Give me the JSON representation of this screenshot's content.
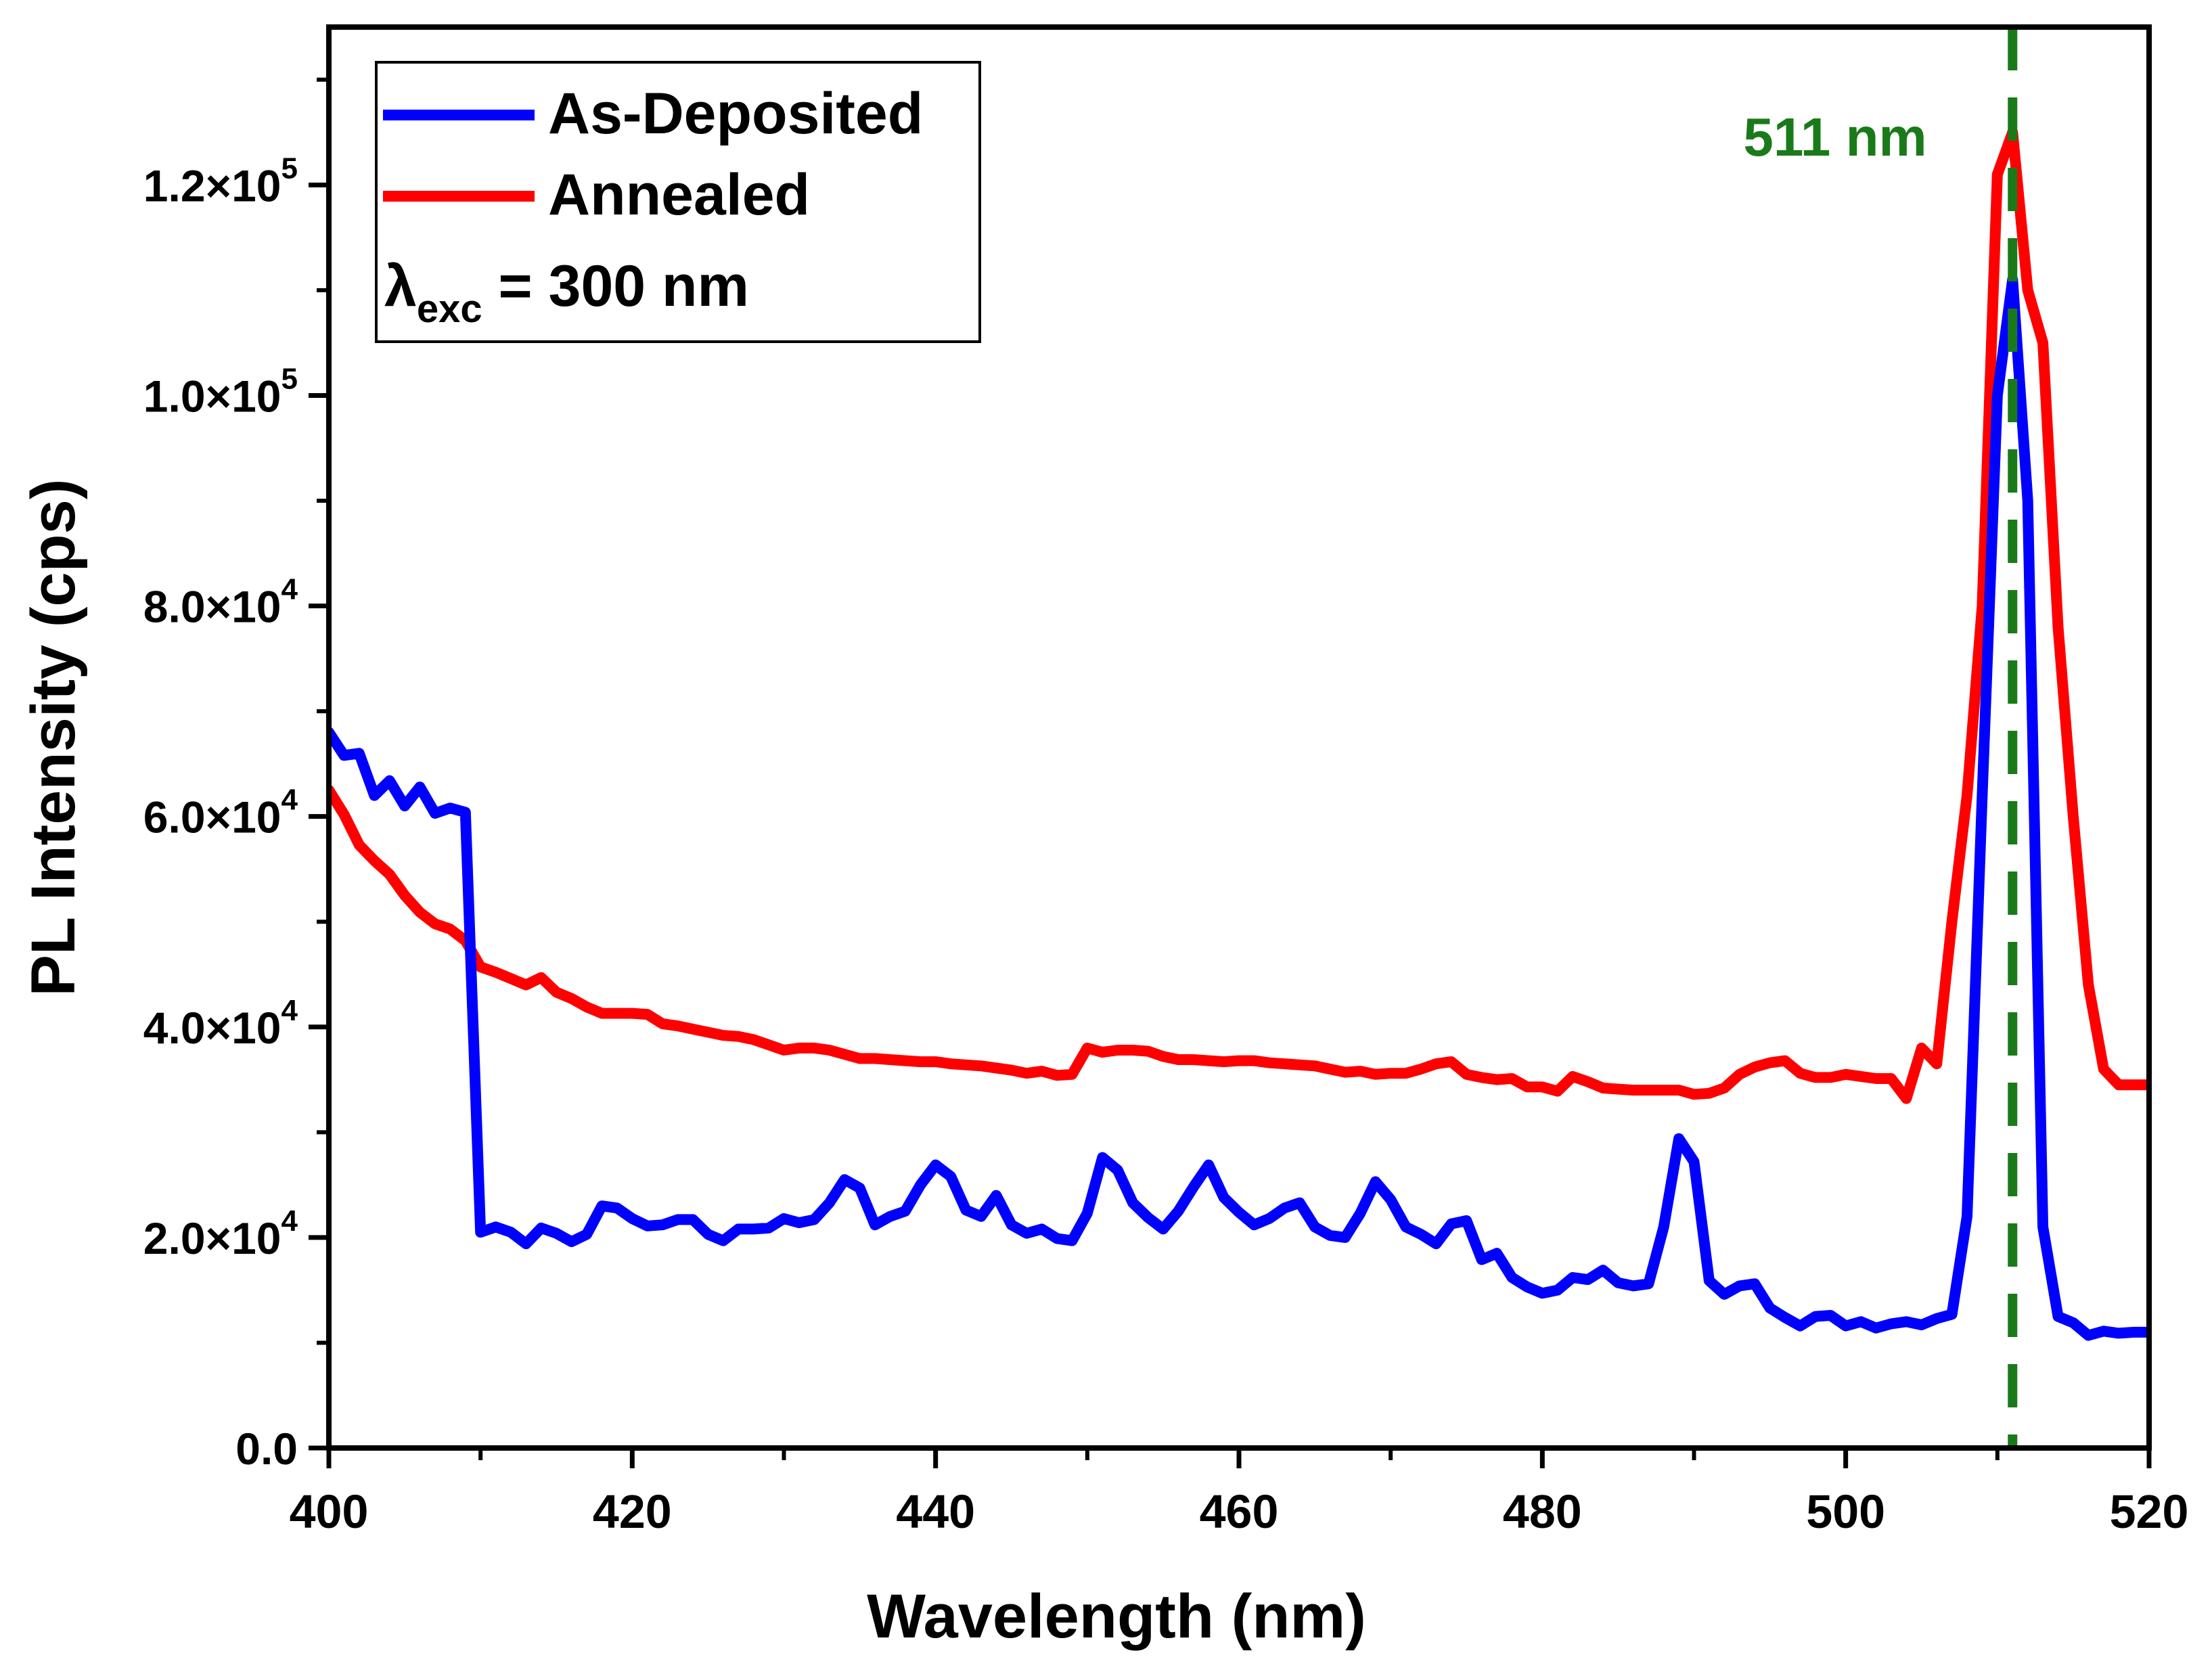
{
  "chart_data": {
    "type": "line",
    "title": "",
    "xlabel": "Wavelength (nm)",
    "ylabel": "PL Intensity (cps)",
    "xlim": [
      400,
      520
    ],
    "ylim": [
      0,
      135000
    ],
    "grid": false,
    "legend_position": "top-left",
    "x_ticks": [
      {
        "value": 400,
        "label": "400"
      },
      {
        "value": 420,
        "label": "420"
      },
      {
        "value": 440,
        "label": "440"
      },
      {
        "value": 460,
        "label": "460"
      },
      {
        "value": 480,
        "label": "480"
      },
      {
        "value": 500,
        "label": "500"
      },
      {
        "value": 520,
        "label": "520"
      }
    ],
    "y_ticks": [
      {
        "value": 0,
        "mantissa": "0.0",
        "exponent": ""
      },
      {
        "value": 20000,
        "mantissa": "2.0×10",
        "exponent": "4"
      },
      {
        "value": 40000,
        "mantissa": "4.0×10",
        "exponent": "4"
      },
      {
        "value": 60000,
        "mantissa": "6.0×10",
        "exponent": "4"
      },
      {
        "value": 80000,
        "mantissa": "8.0×10",
        "exponent": "4"
      },
      {
        "value": 100000,
        "mantissa": "1.0×10",
        "exponent": "5"
      },
      {
        "value": 120000,
        "mantissa": "1.2×10",
        "exponent": "5"
      }
    ],
    "series": [
      {
        "name": "As-Deposited",
        "color": "#0000ff",
        "x": [
          400,
          401,
          402,
          403,
          404,
          405,
          406,
          407,
          408,
          409,
          410,
          411,
          412,
          413,
          414,
          415,
          416,
          417,
          418,
          419,
          420,
          421,
          422,
          423,
          424,
          425,
          426,
          427,
          428,
          429,
          430,
          431,
          432,
          433,
          434,
          435,
          436,
          437,
          438,
          439,
          440,
          441,
          442,
          443,
          444,
          445,
          446,
          447,
          448,
          449,
          450,
          451,
          452,
          453,
          454,
          455,
          456,
          457,
          458,
          459,
          460,
          461,
          462,
          463,
          464,
          465,
          466,
          467,
          468,
          469,
          470,
          471,
          472,
          473,
          474,
          475,
          476,
          477,
          478,
          479,
          480,
          481,
          482,
          483,
          484,
          485,
          486,
          487,
          488,
          489,
          490,
          491,
          492,
          493,
          494,
          495,
          496,
          497,
          498,
          499,
          500,
          501,
          502,
          503,
          504,
          505,
          506,
          507,
          508,
          509,
          510,
          511,
          512,
          513,
          514,
          515,
          516,
          517,
          518,
          519,
          520
        ],
        "y": [
          68000,
          65800,
          66000,
          62000,
          63400,
          61000,
          62800,
          60300,
          60800,
          60400,
          20500,
          21000,
          20500,
          19400,
          20900,
          20400,
          19600,
          20300,
          23000,
          22800,
          21800,
          21100,
          21200,
          21700,
          21700,
          20300,
          19700,
          20800,
          20800,
          20900,
          21800,
          21400,
          21700,
          23300,
          25500,
          24700,
          21200,
          22000,
          22500,
          25000,
          26900,
          25800,
          22600,
          22000,
          24000,
          21200,
          20400,
          20800,
          19900,
          19700,
          22300,
          27600,
          26400,
          23300,
          21900,
          20800,
          22500,
          24800,
          26900,
          23800,
          22400,
          21200,
          21800,
          22800,
          23300,
          21000,
          20200,
          20000,
          22300,
          25300,
          23600,
          21000,
          20300,
          19400,
          21300,
          21600,
          17900,
          18500,
          16200,
          15300,
          14700,
          15000,
          16200,
          16000,
          16900,
          15700,
          15400,
          15600,
          21000,
          29400,
          27200,
          15900,
          14600,
          15400,
          15600,
          13300,
          12400,
          11600,
          12500,
          12600,
          11600,
          12000,
          11400,
          11800,
          12000,
          11700,
          12300,
          12700,
          22000,
          62000,
          100000,
          111000,
          90000,
          21000,
          12500,
          11900,
          10700,
          11100,
          10900,
          11000,
          11000
        ]
      },
      {
        "name": "Annealed",
        "color": "#ff0000",
        "x": [
          400,
          401,
          402,
          403,
          404,
          405,
          406,
          407,
          408,
          409,
          410,
          411,
          412,
          413,
          414,
          415,
          416,
          417,
          418,
          419,
          420,
          421,
          422,
          423,
          424,
          425,
          426,
          427,
          428,
          429,
          430,
          431,
          432,
          433,
          434,
          435,
          436,
          437,
          438,
          439,
          440,
          441,
          442,
          443,
          444,
          445,
          446,
          447,
          448,
          449,
          450,
          451,
          452,
          453,
          454,
          455,
          456,
          457,
          458,
          459,
          460,
          461,
          462,
          463,
          464,
          465,
          466,
          467,
          468,
          469,
          470,
          471,
          472,
          473,
          474,
          475,
          476,
          477,
          478,
          479,
          480,
          481,
          482,
          483,
          484,
          485,
          486,
          487,
          488,
          489,
          490,
          491,
          492,
          493,
          494,
          495,
          496,
          497,
          498,
          499,
          500,
          501,
          502,
          503,
          504,
          505,
          506,
          507,
          508,
          509,
          510,
          511,
          512,
          513,
          514,
          515,
          516,
          517,
          518,
          519,
          520
        ],
        "y": [
          62500,
          60200,
          57300,
          55800,
          54500,
          52500,
          50900,
          49800,
          49300,
          48200,
          45700,
          45200,
          44600,
          44000,
          44700,
          43300,
          42700,
          41900,
          41300,
          41300,
          41300,
          41200,
          40300,
          40100,
          39800,
          39500,
          39200,
          39100,
          38800,
          38300,
          37800,
          38000,
          38000,
          37800,
          37400,
          37000,
          37000,
          36900,
          36800,
          36700,
          36700,
          36500,
          36400,
          36300,
          36100,
          35900,
          35600,
          35800,
          35400,
          35500,
          38000,
          37600,
          37800,
          37800,
          37700,
          37200,
          36900,
          36900,
          36800,
          36700,
          36800,
          36800,
          36600,
          36500,
          36400,
          36300,
          36000,
          35700,
          35800,
          35500,
          35600,
          35600,
          36000,
          36500,
          36700,
          35500,
          35200,
          35000,
          35100,
          34300,
          34300,
          33900,
          35300,
          34800,
          34200,
          34100,
          34000,
          34000,
          34000,
          34000,
          33600,
          33700,
          34200,
          35500,
          36200,
          36600,
          36800,
          35600,
          35200,
          35200,
          35500,
          35300,
          35100,
          35100,
          33200,
          38000,
          36500,
          50000,
          62000,
          80000,
          121000,
          125000,
          110000,
          105000,
          78000,
          60000,
          44000,
          36000,
          34500,
          34500,
          34500
        ]
      }
    ],
    "annotations": [
      {
        "type": "vline",
        "x": 511,
        "color": "#1a7a1a",
        "style": "dashed",
        "label": "511 nm"
      },
      {
        "type": "legend-text",
        "symbol": "λ",
        "subscript": "exc",
        "text": " = 300 nm"
      }
    ]
  },
  "colors": {
    "axis": "#000000",
    "background": "#ffffff",
    "vline": "#1a7a1a"
  }
}
